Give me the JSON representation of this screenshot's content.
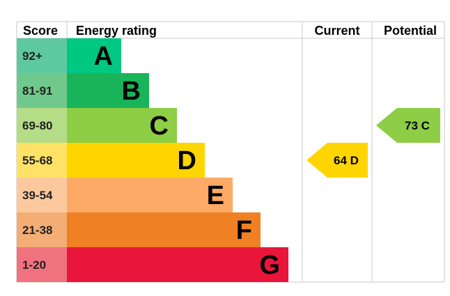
{
  "headers": {
    "score": "Score",
    "energy_rating": "Energy rating",
    "current": "Current",
    "potential": "Potential"
  },
  "chart_data": {
    "type": "bar",
    "bands": [
      {
        "letter": "A",
        "range": "92+",
        "color": "#00c781",
        "score_color": "#5ec8a0"
      },
      {
        "letter": "B",
        "range": "81-91",
        "color": "#19b459",
        "score_color": "#70c98c"
      },
      {
        "letter": "C",
        "range": "69-80",
        "color": "#8dce46",
        "score_color": "#b5dc86"
      },
      {
        "letter": "D",
        "range": "55-68",
        "color": "#ffd500",
        "score_color": "#fde266"
      },
      {
        "letter": "E",
        "range": "39-54",
        "color": "#fcaa65",
        "score_color": "#fcc99f"
      },
      {
        "letter": "F",
        "range": "21-38",
        "color": "#ef8023",
        "score_color": "#f3ad75"
      },
      {
        "letter": "G",
        "range": "1-20",
        "color": "#e9153b",
        "score_color": "#f0737f"
      }
    ],
    "current": {
      "value": 64,
      "band": "D",
      "label": "64  D",
      "color": "#ffd500"
    },
    "potential": {
      "value": 73,
      "band": "C",
      "label": "73  C",
      "color": "#8dce46"
    }
  }
}
